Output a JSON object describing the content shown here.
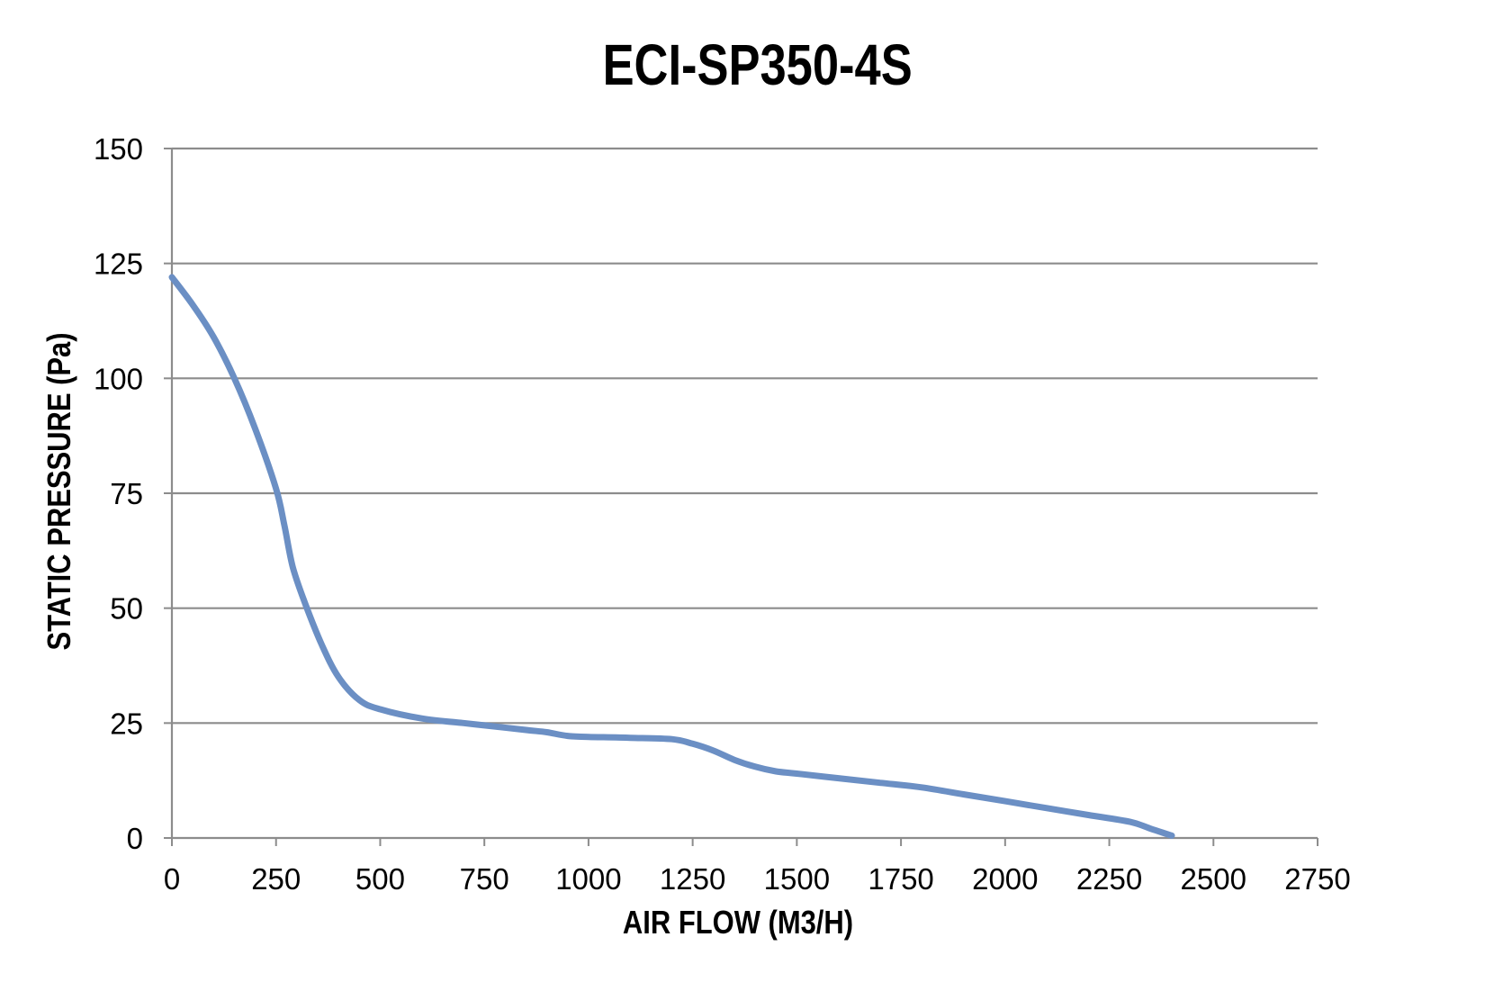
{
  "chart_data": {
    "type": "line",
    "title": "ECI-SP350-4S",
    "xlabel": "AIR FLOW (M3/H)",
    "ylabel": "STATIC PRESSURE (Pa)",
    "xlim": [
      0,
      2750
    ],
    "ylim": [
      0,
      150
    ],
    "x_ticks": [
      0,
      250,
      500,
      750,
      1000,
      1250,
      1500,
      1750,
      2000,
      2250,
      2500,
      2750
    ],
    "y_ticks": [
      0,
      25,
      50,
      75,
      100,
      125,
      150
    ],
    "x_tick_labels": [
      "0",
      "250",
      "500",
      "750",
      "1000",
      "1250",
      "1500",
      "1750",
      "2000",
      "2250",
      "2500",
      "2750"
    ],
    "y_tick_labels": [
      "0",
      "25",
      "50",
      "75",
      "100",
      "125",
      "150"
    ],
    "grid": "horizontal",
    "legend": "none",
    "series": [
      {
        "color": "#6b8fc4",
        "x": [
          0,
          50,
          100,
          150,
          200,
          250,
          270,
          290,
          320,
          360,
          400,
          450,
          500,
          600,
          700,
          750,
          850,
          900,
          950,
          1000,
          1100,
          1200,
          1250,
          1300,
          1350,
          1400,
          1450,
          1500,
          1600,
          1700,
          1800,
          1900,
          2000,
          2100,
          2200,
          2300,
          2350,
          2400
        ],
        "y": [
          122,
          116,
          109,
          100,
          89,
          76,
          68,
          59,
          51,
          42,
          35,
          30,
          28,
          26,
          25,
          24.5,
          23.5,
          23,
          22.2,
          22,
          21.8,
          21.5,
          20.5,
          19,
          17,
          15.5,
          14.5,
          14,
          13,
          12,
          11,
          9.5,
          8,
          6.5,
          5,
          3.5,
          2,
          0.5
        ]
      }
    ]
  }
}
